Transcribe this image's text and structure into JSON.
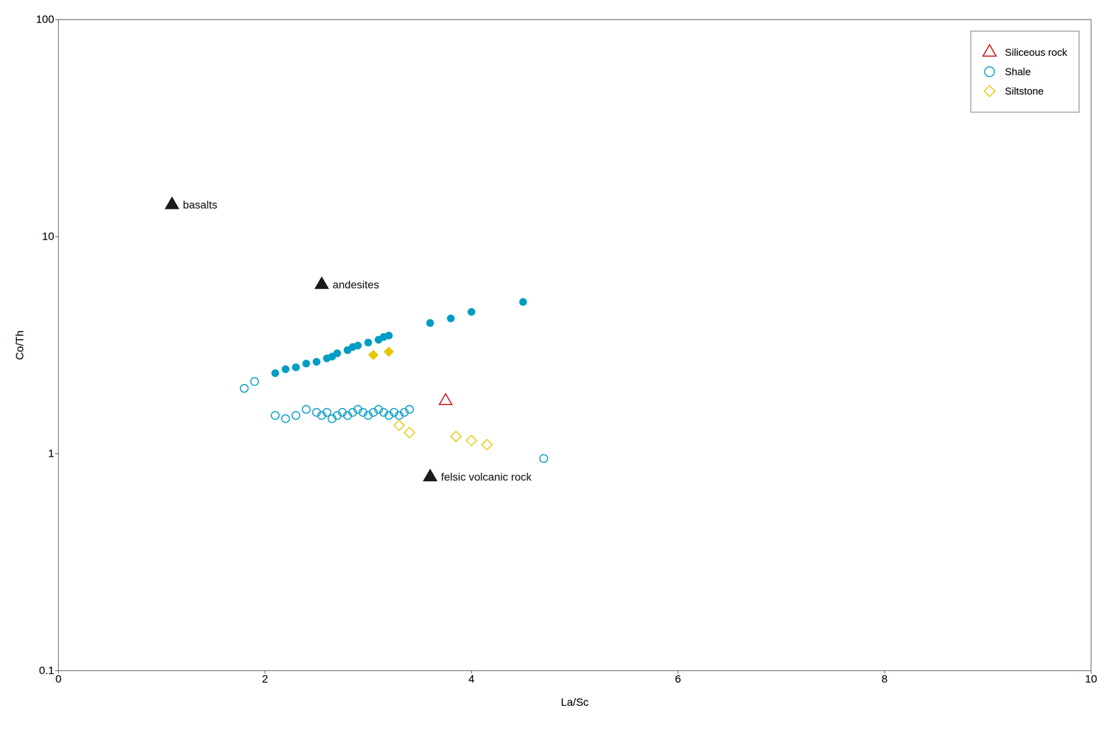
{
  "chart_data": {
    "type": "scatter",
    "xlabel": "La/Sc",
    "ylabel": "Co/Th",
    "xlim": [
      0,
      10
    ],
    "ylim": [
      0.1,
      100
    ],
    "xticks": [
      0,
      2,
      4,
      6,
      8,
      10
    ],
    "yticks": [
      0.1,
      1,
      10,
      100
    ],
    "log": "y",
    "grid": false,
    "legend": "upper right",
    "annotations": [
      {
        "text": "basalts",
        "x": 1.1,
        "y": 14.0,
        "marker": "triangle",
        "color": "#1a1a1a"
      },
      {
        "text": "andesites",
        "x": 2.55,
        "y": 6.0,
        "marker": "triangle",
        "color": "#1a1a1a"
      },
      {
        "text": "felsic volcanic rock",
        "x": 3.6,
        "y": 0.78,
        "marker": "triangle",
        "color": "#1a1a1a"
      }
    ],
    "series": [
      {
        "name": "Siliceous rock",
        "color": "#CC0000",
        "marker": "triangle-open",
        "x": [
          3.75
        ],
        "y": [
          1.75
        ]
      },
      {
        "name": "Shale",
        "color": "#009DC4",
        "marker": "circle",
        "x": [
          2.1,
          2.2,
          2.3,
          2.4,
          2.5,
          2.6,
          2.65,
          2.7,
          2.8,
          2.85,
          2.9,
          3.0,
          3.1,
          3.15,
          3.2,
          3.6,
          3.8,
          4.0,
          4.5
        ],
        "y": [
          2.35,
          2.45,
          2.5,
          2.6,
          2.65,
          2.75,
          2.8,
          2.9,
          3.0,
          3.1,
          3.15,
          3.25,
          3.35,
          3.45,
          3.5,
          4.0,
          4.2,
          4.5,
          5.0
        ]
      },
      {
        "name": "Shale",
        "color": "#009DC4",
        "marker": "circle-open",
        "x": [
          1.8,
          1.9,
          2.1,
          2.2,
          2.3,
          2.4,
          2.5,
          2.55,
          2.6,
          2.65,
          2.7,
          2.75,
          2.8,
          2.85,
          2.9,
          2.95,
          3.0,
          3.05,
          3.1,
          3.15,
          3.2,
          3.25,
          3.3,
          3.35,
          3.4,
          4.7
        ],
        "y": [
          2.0,
          2.15,
          1.5,
          1.45,
          1.5,
          1.6,
          1.55,
          1.5,
          1.55,
          1.45,
          1.5,
          1.55,
          1.5,
          1.55,
          1.6,
          1.55,
          1.5,
          1.55,
          1.6,
          1.55,
          1.5,
          1.55,
          1.5,
          1.55,
          1.6,
          0.95
        ]
      },
      {
        "name": "Siltstone",
        "color": "#E8C800",
        "marker": "diamond",
        "x": [
          3.05,
          3.2
        ],
        "y": [
          2.85,
          2.95
        ]
      },
      {
        "name": "Siltstone",
        "color": "#E8C800",
        "marker": "diamond-open",
        "x": [
          3.3,
          3.4,
          3.85,
          4.0,
          4.15
        ],
        "y": [
          1.35,
          1.25,
          1.2,
          1.15,
          1.1
        ]
      }
    ]
  }
}
